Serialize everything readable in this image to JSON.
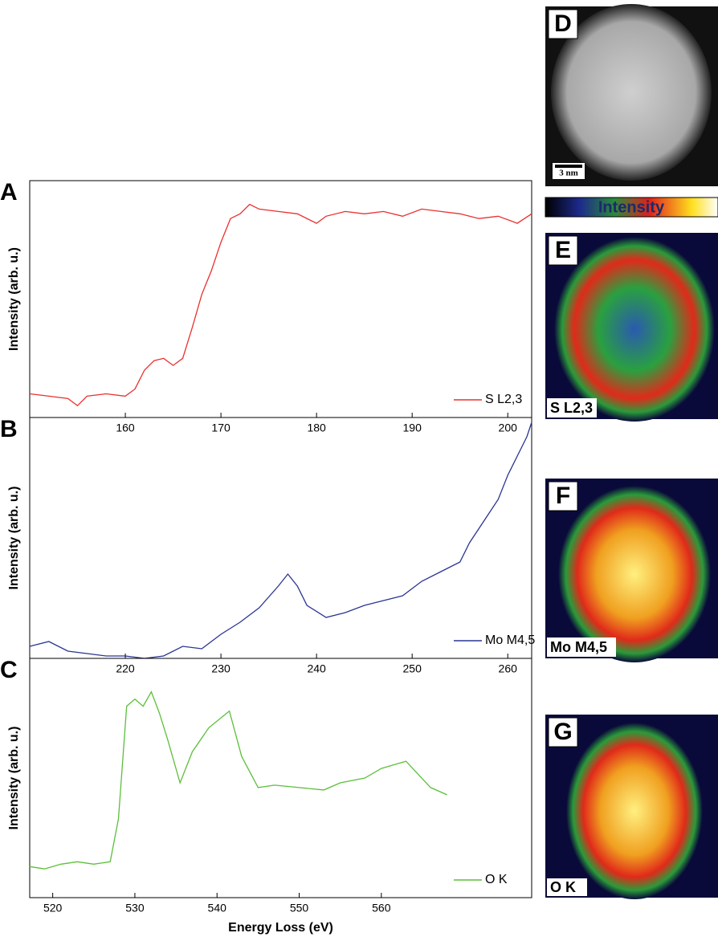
{
  "chart_data": [
    {
      "type": "line",
      "panel_label": "A",
      "ylabel": "Intensity (arb. u.)",
      "x": [
        150,
        152,
        154,
        155,
        156,
        158,
        160,
        161,
        162,
        163,
        164,
        165,
        166,
        167,
        168,
        169,
        170,
        171,
        172,
        173,
        174,
        176,
        178,
        180,
        181,
        183,
        185,
        187,
        189,
        191,
        193,
        195,
        197,
        199,
        201,
        202.5
      ],
      "series": [
        {
          "name": "S L2,3",
          "color": "#e8312f",
          "values": [
            10,
            9,
            8,
            5,
            9,
            10,
            9,
            12,
            20,
            24,
            25,
            22,
            25,
            38,
            52,
            62,
            74,
            84,
            86,
            90,
            88,
            87,
            86,
            82,
            85,
            87,
            86,
            87,
            85,
            88,
            87,
            86,
            84,
            85,
            82,
            86
          ]
        }
      ],
      "xlim": [
        150,
        202.5
      ],
      "xticks": [
        160,
        170,
        180,
        190,
        200
      ],
      "ylim": [
        0,
        100
      ]
    },
    {
      "type": "line",
      "panel_label": "B",
      "ylabel": "Intensity (arb. u.)",
      "x": [
        210,
        212,
        214,
        216,
        218,
        220,
        222,
        224,
        226,
        228,
        230,
        232,
        234,
        236,
        237,
        238,
        239,
        241,
        243,
        245,
        247,
        249,
        251,
        253,
        255,
        256,
        258,
        259,
        260,
        261,
        262,
        262.5
      ],
      "series": [
        {
          "name": "Mo M4,5",
          "color": "#2a3592",
          "values": [
            5,
            7,
            3,
            2,
            1,
            1,
            0,
            1,
            5,
            4,
            10,
            15,
            21,
            30,
            35,
            30,
            22,
            17,
            19,
            22,
            24,
            26,
            32,
            36,
            40,
            48,
            60,
            66,
            76,
            84,
            92,
            98
          ]
        }
      ],
      "xlim": [
        210,
        262.5
      ],
      "xticks": [
        220,
        230,
        240,
        250,
        260
      ],
      "ylim": [
        0,
        100
      ]
    },
    {
      "type": "line",
      "panel_label": "C",
      "ylabel": "Intensity (arb. u.)",
      "xlabel": "Energy Loss (eV)",
      "x": [
        517.2,
        519,
        521,
        523,
        525,
        527,
        528,
        529,
        530,
        531,
        532,
        533,
        534,
        535.5,
        537,
        539,
        541.5,
        543,
        545,
        547,
        550,
        553,
        555,
        558,
        560,
        563,
        566,
        568
      ],
      "series": [
        {
          "name": "O K",
          "color": "#5cbf3a",
          "values": [
            13,
            12,
            14,
            15,
            14,
            15,
            33,
            80,
            83,
            80,
            86,
            77,
            66,
            48,
            61,
            71,
            78,
            59,
            46,
            47,
            46,
            45,
            48,
            50,
            54,
            57,
            46,
            43
          ]
        }
      ],
      "xlim": [
        517.2,
        578.3
      ],
      "xticks": [
        520,
        530,
        540,
        550,
        560
      ],
      "ylim": [
        0,
        100
      ]
    }
  ],
  "images": {
    "panels": [
      "D",
      "E",
      "F",
      "G"
    ],
    "scale_bar": "3 nm",
    "colorbar_label": "Intensity",
    "maps": [
      "S L2,3",
      "Mo M4,5",
      "O K"
    ]
  }
}
